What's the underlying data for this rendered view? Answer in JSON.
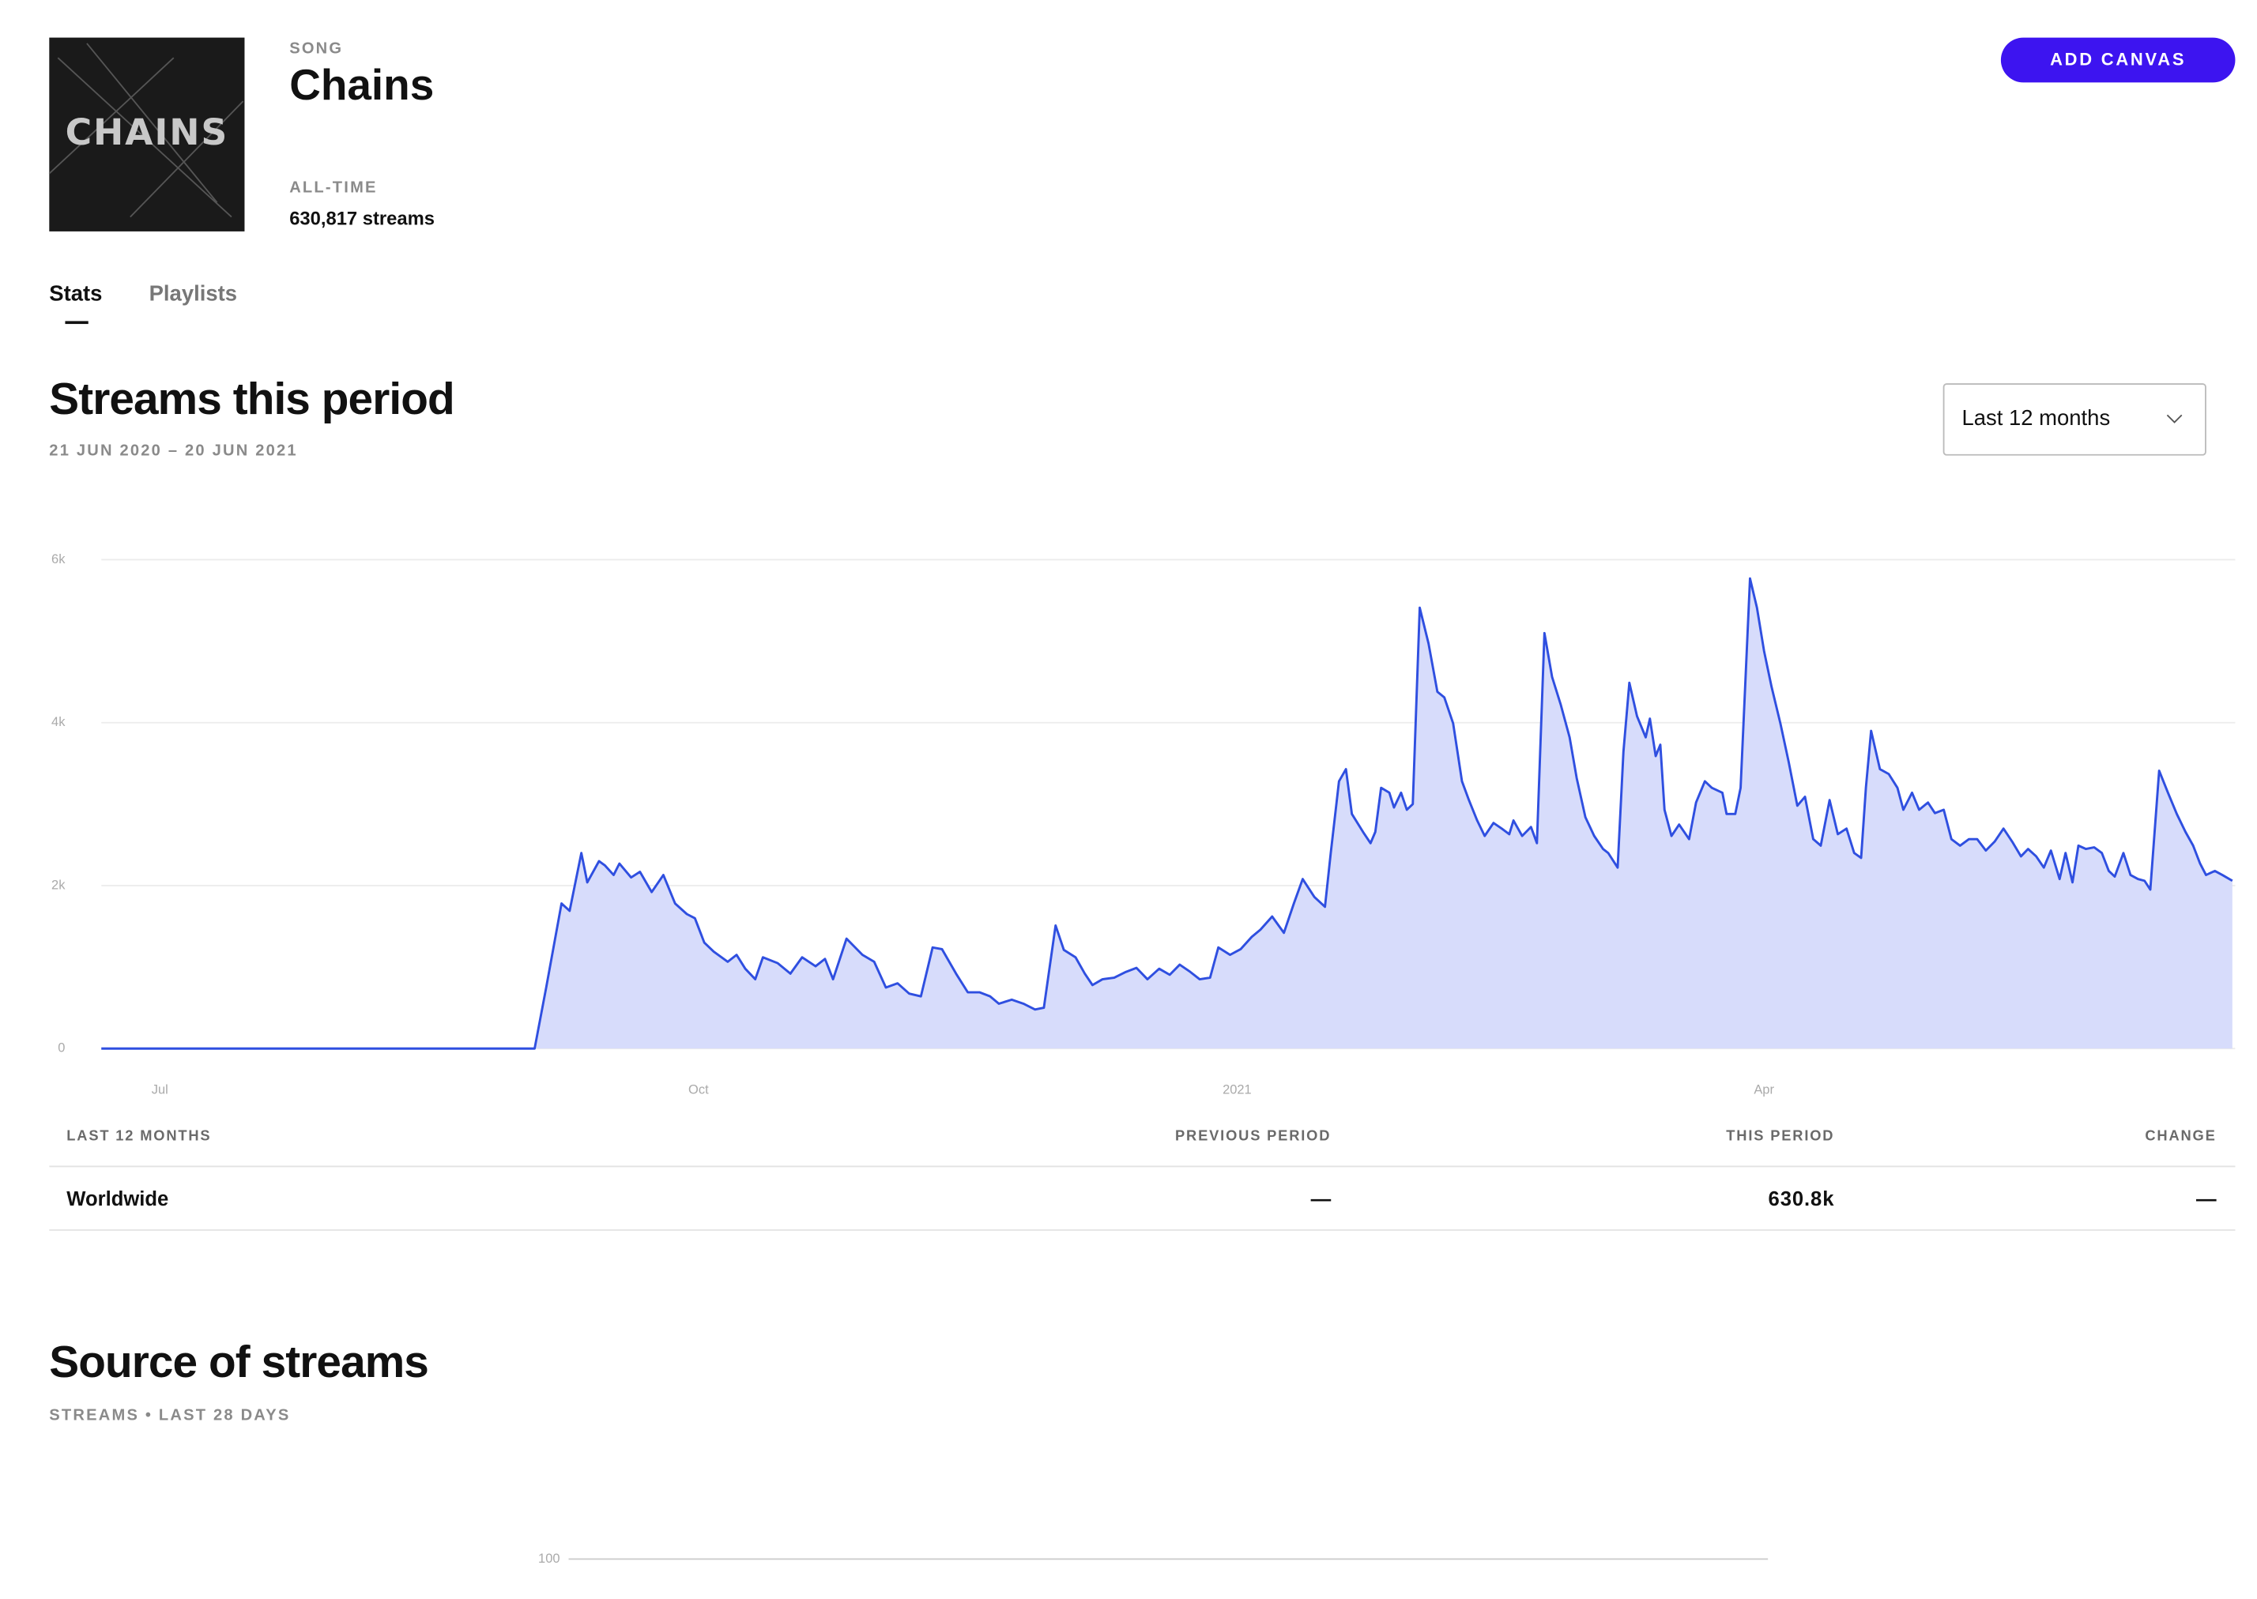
{
  "header": {
    "cover_text": "CHAINS",
    "label": "SONG",
    "title": "Chains",
    "alltime_label": "ALL-TIME",
    "streams": "630,817 streams",
    "button": "ADD CANVAS"
  },
  "tabs": [
    "Stats",
    "Playlists"
  ],
  "period": {
    "title": "Streams this period",
    "subtitle": "21 JUN 2020 – 20 JUN 2021",
    "dropdown": "Last 12 months"
  },
  "chart_data": {
    "type": "area",
    "color": "#2f4fe0",
    "area_color": "#d7dcfb",
    "grid": true,
    "xlim": [
      0,
      364
    ],
    "ylim": [
      0,
      6000
    ],
    "xticks": [
      {
        "value": 10,
        "label": "Jul"
      },
      {
        "value": 102,
        "label": "Oct"
      },
      {
        "value": 194,
        "label": "2021"
      },
      {
        "value": 284,
        "label": "Apr"
      }
    ],
    "yticks": [
      0,
      {
        "value": 2000,
        "label": "2k"
      },
      {
        "value": 4000,
        "label": "4k"
      },
      {
        "value": 6000,
        "label": "6k"
      }
    ],
    "x": [
      0,
      74,
      76,
      78.6,
      80,
      82,
      83,
      85,
      86,
      87.5,
      88.5,
      90.5,
      92,
      94,
      96,
      98,
      100,
      101.4,
      103,
      104.6,
      107,
      108.5,
      110,
      111.7,
      113,
      115.5,
      117.7,
      119.7,
      122,
      123.6,
      125,
      127.3,
      130,
      132,
      134,
      136,
      138,
      140,
      142,
      143.6,
      146,
      148,
      150,
      151.8,
      153.3,
      155.5,
      157.5,
      159.5,
      161,
      163,
      164.4,
      166.4,
      168,
      169.3,
      171,
      173,
      175,
      176.8,
      178.7,
      180.7,
      182.5,
      184.2,
      186,
      187.6,
      189.4,
      190.8,
      192.8,
      194.6,
      196.5,
      198,
      200,
      202,
      203.7,
      205.2,
      207.2,
      209,
      210,
      211.4,
      212.6,
      213.6,
      215.5,
      216.8,
      217.6,
      218.6,
      220,
      220.8,
      222,
      223,
      224,
      225.2,
      226.7,
      228.2,
      229.4,
      230.9,
      232.4,
      233.6,
      235,
      236.3,
      237.8,
      239.2,
      240.5,
      241.2,
      242.7,
      244.2,
      245.2,
      246.5,
      247.8,
      249.3,
      250.8,
      252,
      253.5,
      255,
      256.5,
      257.4,
      259,
      260,
      261,
      262.3,
      263.8,
      264.5,
      265.5,
      266.3,
      267,
      268.2,
      269.5,
      271.2,
      272.4,
      273.9,
      275.1,
      276.9,
      277.6,
      279.1,
      280,
      281.6,
      282.8,
      284,
      285.3,
      286.8,
      288.2,
      289.7,
      291,
      292.4,
      293.7,
      295.2,
      296.6,
      298.1,
      299.4,
      300.6,
      301.4,
      302.3,
      303.8,
      305.3,
      306.8,
      307.8,
      309.3,
      310.5,
      312,
      313.2,
      314.7,
      316,
      317.5,
      319,
      320.4,
      321.9,
      323.4,
      324.9,
      326.4,
      327.9,
      329.1,
      330.5,
      331.8,
      333,
      334.5,
      335.5,
      336.7,
      337.7,
      339,
      340.4,
      341.7,
      342.9,
      343.9,
      345.4,
      346.6,
      347.9,
      349,
      350,
      351.5,
      353,
      354.5,
      356,
      357.3,
      358.5,
      359.5,
      361,
      362.3,
      364
    ],
    "values": [
      0,
      0,
      750,
      1780,
      1690,
      2400,
      2040,
      2300,
      2250,
      2130,
      2270,
      2100,
      2170,
      1920,
      2130,
      1780,
      1650,
      1600,
      1300,
      1190,
      1065,
      1150,
      980,
      850,
      1120,
      1050,
      920,
      1120,
      1010,
      1100,
      850,
      1350,
      1150,
      1065,
      750,
      800,
      675,
      640,
      1240,
      1220,
      920,
      690,
      690,
      640,
      550,
      600,
      550,
      480,
      500,
      1510,
      1210,
      1120,
      920,
      780,
      850,
      870,
      940,
      990,
      850,
      980,
      905,
      1030,
      940,
      850,
      870,
      1240,
      1150,
      1220,
      1370,
      1460,
      1620,
      1420,
      1780,
      2080,
      1860,
      1740,
      2400,
      3280,
      3430,
      2880,
      2660,
      2520,
      2660,
      3200,
      3140,
      2960,
      3140,
      2930,
      3000,
      5410,
      4970,
      4380,
      4310,
      3990,
      3280,
      3050,
      2800,
      2610,
      2770,
      2700,
      2630,
      2800,
      2610,
      2720,
      2520,
      5100,
      4560,
      4220,
      3820,
      3320,
      2840,
      2610,
      2450,
      2400,
      2220,
      3640,
      4490,
      4080,
      3820,
      4050,
      3590,
      3730,
      2930,
      2610,
      2750,
      2570,
      3020,
      3280,
      3200,
      3140,
      2880,
      2880,
      3200,
      5770,
      5410,
      4880,
      4440,
      3990,
      3520,
      2980,
      3090,
      2570,
      2490,
      3050,
      2630,
      2700,
      2400,
      2340,
      3200,
      3900,
      3430,
      3370,
      3200,
      2930,
      3140,
      2930,
      3020,
      2890,
      2930,
      2570,
      2490,
      2570,
      2570,
      2430,
      2540,
      2700,
      2540,
      2360,
      2450,
      2360,
      2220,
      2430,
      2080,
      2400,
      2040,
      2490,
      2450,
      2470,
      2400,
      2180,
      2110,
      2400,
      2130,
      2080,
      2060,
      1950,
      3410,
      3140,
      2880,
      2660,
      2490,
      2270,
      2130,
      2180,
      2130,
      2060
    ]
  },
  "table": {
    "headers": [
      "LAST 12 MONTHS",
      "PREVIOUS PERIOD",
      "THIS PERIOD",
      "CHANGE"
    ],
    "rows": [
      [
        "Worldwide",
        "—",
        "630.8k",
        "—"
      ]
    ]
  },
  "source": {
    "title": "Source of streams",
    "subtitle": "STREAMS • LAST 28 DAYS",
    "yticks": [
      100
    ]
  }
}
